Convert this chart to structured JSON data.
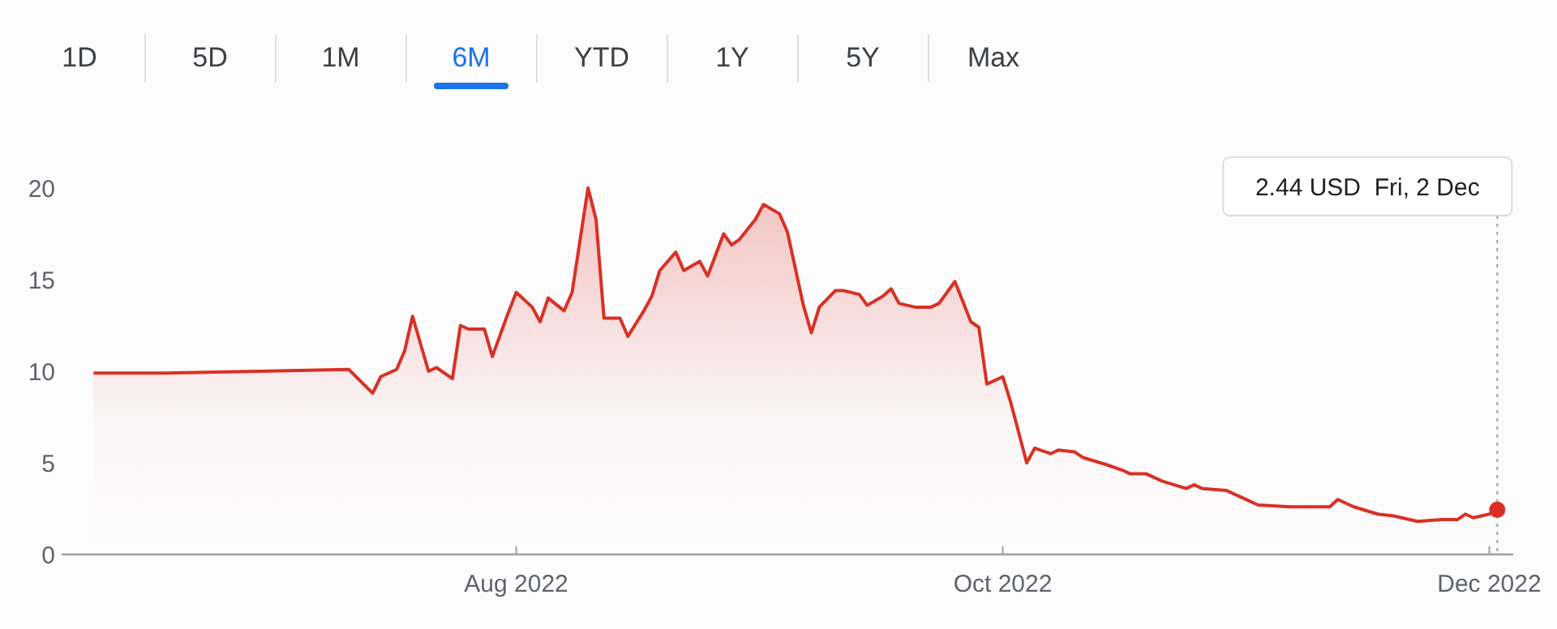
{
  "chart_data": {
    "type": "area",
    "color": "#d93025",
    "annotations": [
      "1D",
      "5D",
      "1M",
      "6M",
      "YTD",
      "1Y",
      "5Y",
      "Max"
    ],
    "x": [
      "2022-06-09",
      "2022-06-18",
      "2022-06-30",
      "2022-07-11",
      "2022-07-14",
      "2022-07-15",
      "2022-07-17",
      "2022-07-18",
      "2022-07-19",
      "2022-07-21",
      "2022-07-22",
      "2022-07-24",
      "2022-07-25",
      "2022-07-26",
      "2022-07-28",
      "2022-07-29",
      "2022-07-31",
      "2022-08-01",
      "2022-08-03",
      "2022-08-04",
      "2022-08-05",
      "2022-08-07",
      "2022-08-08",
      "2022-08-10",
      "2022-08-11",
      "2022-08-12",
      "2022-08-14",
      "2022-08-15",
      "2022-08-17",
      "2022-08-18",
      "2022-08-19",
      "2022-08-21",
      "2022-08-22",
      "2022-08-24",
      "2022-08-25",
      "2022-08-27",
      "2022-08-28",
      "2022-08-29",
      "2022-08-31",
      "2022-09-01",
      "2022-09-03",
      "2022-09-04",
      "2022-09-06",
      "2022-09-07",
      "2022-09-08",
      "2022-09-10",
      "2022-09-11",
      "2022-09-13",
      "2022-09-14",
      "2022-09-16",
      "2022-09-17",
      "2022-09-18",
      "2022-09-20",
      "2022-09-22",
      "2022-09-23",
      "2022-09-24",
      "2022-09-25",
      "2022-09-27",
      "2022-09-28",
      "2022-09-29",
      "2022-10-01",
      "2022-10-02",
      "2022-10-04",
      "2022-10-05",
      "2022-10-07",
      "2022-10-08",
      "2022-10-10",
      "2022-10-11",
      "2022-10-14",
      "2022-10-16",
      "2022-10-17",
      "2022-10-19",
      "2022-10-21",
      "2022-10-24",
      "2022-10-25",
      "2022-10-26",
      "2022-10-29",
      "2022-10-31",
      "2022-11-02",
      "2022-11-06",
      "2022-11-11",
      "2022-11-12",
      "2022-11-14",
      "2022-11-17",
      "2022-11-19",
      "2022-11-22",
      "2022-11-25",
      "2022-11-27",
      "2022-11-28",
      "2022-11-29",
      "2022-12-01",
      "2022-12-02"
    ],
    "values": [
      9.9,
      9.9,
      10.0,
      10.1,
      8.8,
      9.7,
      10.1,
      11.1,
      13.0,
      10.0,
      10.2,
      9.6,
      12.5,
      12.3,
      12.3,
      10.8,
      13.2,
      14.3,
      13.5,
      12.7,
      14.0,
      13.3,
      14.3,
      20.0,
      18.3,
      12.9,
      12.9,
      11.9,
      13.3,
      14.1,
      15.5,
      16.5,
      15.5,
      16.0,
      15.2,
      17.5,
      16.9,
      17.2,
      18.3,
      19.1,
      18.6,
      17.6,
      13.6,
      12.1,
      13.5,
      14.4,
      14.4,
      14.2,
      13.6,
      14.1,
      14.5,
      13.7,
      13.5,
      13.5,
      13.7,
      14.3,
      14.9,
      12.7,
      12.4,
      9.3,
      9.7,
      8.3,
      5.0,
      5.8,
      5.5,
      5.7,
      5.6,
      5.3,
      4.9,
      4.6,
      4.4,
      4.4,
      4.0,
      3.6,
      3.8,
      3.6,
      3.5,
      3.1,
      2.7,
      2.6,
      2.6,
      3.0,
      2.6,
      2.2,
      2.1,
      1.8,
      1.9,
      1.9,
      2.2,
      2.0,
      2.2,
      2.44
    ],
    "xlim": [
      "2022-06-05",
      "2022-12-04"
    ],
    "xticks": [
      {
        "value": "2022-08-01",
        "label": "Aug 2022"
      },
      {
        "value": "2022-10-01",
        "label": "Oct 2022"
      },
      {
        "value": "2022-12-01",
        "label": "Dec 2022"
      }
    ],
    "ylim": [
      0,
      20
    ],
    "yticks": [
      0,
      5,
      10,
      15,
      20
    ],
    "grid": false,
    "ref_lines": [
      {
        "axis": "x",
        "value": "2022-12-02",
        "label": "2.44 USD  Fri, 2 Dec",
        "line_style": "dotted"
      }
    ]
  }
}
